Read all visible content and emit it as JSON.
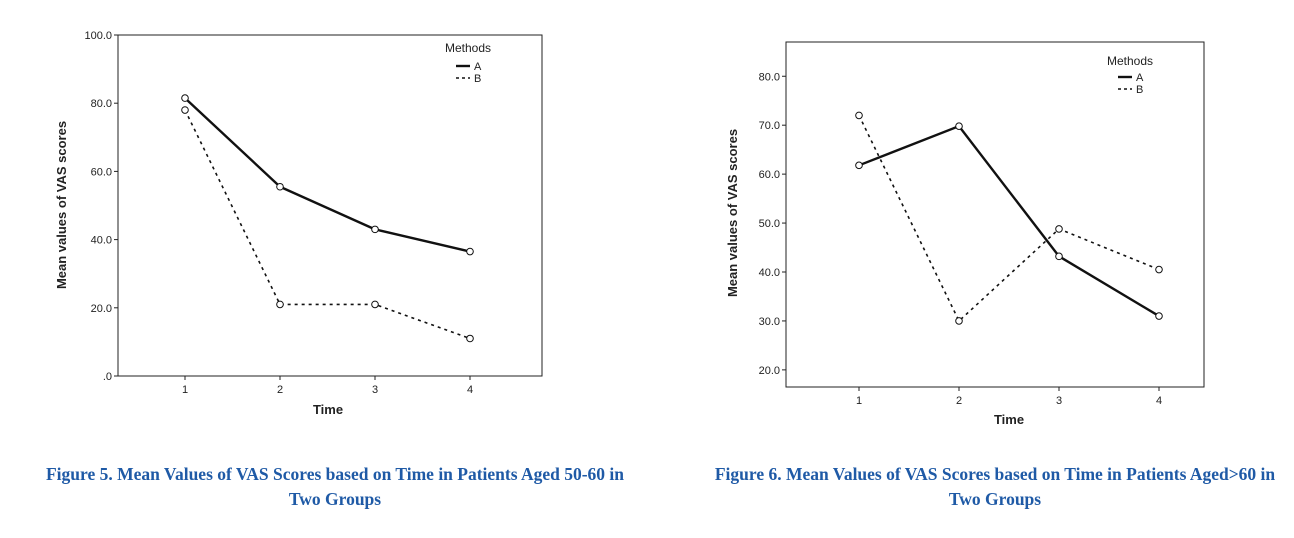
{
  "chart_data": [
    {
      "type": "line",
      "xlabel": "Time",
      "ylabel": "Mean values of VAS scores",
      "categories": [
        "1",
        "2",
        "3",
        "4"
      ],
      "y_ticks": [
        ".0",
        "20.0",
        "40.0",
        "60.0",
        "80.0",
        "100.0"
      ],
      "ylim": [
        0,
        100
      ],
      "legend": {
        "title": "Methods",
        "placement": "top-right"
      },
      "series": [
        {
          "name": "A",
          "style": "solid",
          "values": [
            81.5,
            55.5,
            43.0,
            36.5
          ]
        },
        {
          "name": "B",
          "style": "dotted",
          "values": [
            78.0,
            21.0,
            21.0,
            11.0
          ]
        }
      ],
      "caption": "Figure 5. Mean Values of VAS Scores based on Time in Patients Aged 50-60 in Two Groups"
    },
    {
      "type": "line",
      "xlabel": "Time",
      "ylabel": "Mean values of VAS scores",
      "categories": [
        "1",
        "2",
        "3",
        "4"
      ],
      "y_ticks": [
        "20.0",
        "30.0",
        "40.0",
        "50.0",
        "60.0",
        "70.0",
        "80.0"
      ],
      "ylim": [
        16.5,
        87
      ],
      "legend": {
        "title": "Methods",
        "placement": "top-right"
      },
      "series": [
        {
          "name": "A",
          "style": "solid",
          "values": [
            61.8,
            69.8,
            43.2,
            31.0
          ]
        },
        {
          "name": "B",
          "style": "dotted",
          "values": [
            72.0,
            30.0,
            48.8,
            40.5
          ]
        }
      ],
      "caption": "Figure 6. Mean Values of VAS Scores based on Time in Patients Aged>60 in Two Groups"
    }
  ]
}
